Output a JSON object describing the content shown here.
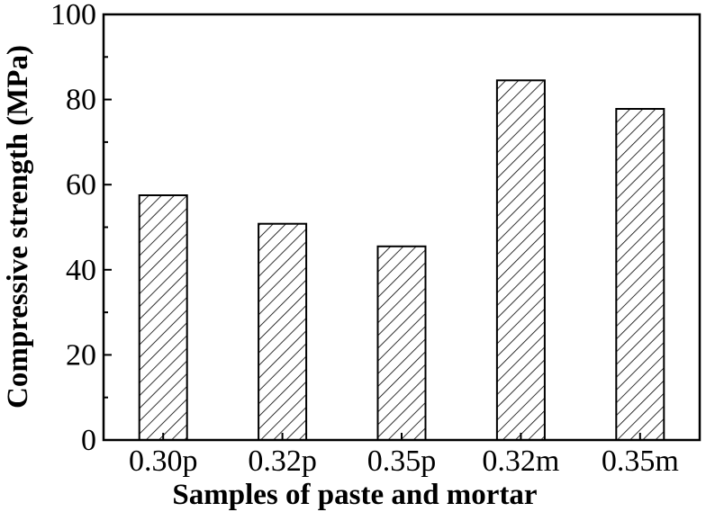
{
  "chart_data": {
    "type": "bar",
    "title": "",
    "xlabel": "Samples of paste and mortar",
    "ylabel": "Compressive strength (MPa)",
    "categories": [
      "0.30p",
      "0.32p",
      "0.35p",
      "0.32m",
      "0.35m"
    ],
    "values": [
      57.5,
      50.8,
      45.5,
      84.5,
      77.8
    ],
    "ylim": [
      0,
      100
    ],
    "yticks": [
      "0",
      "20",
      "40",
      "60",
      "80",
      "100"
    ],
    "grid": false,
    "legend": "none",
    "bar_fill": "diagonal-hatch",
    "colors": {
      "bar_edge": "#000000",
      "hatch": "#000000",
      "background": "#ffffff"
    }
  }
}
